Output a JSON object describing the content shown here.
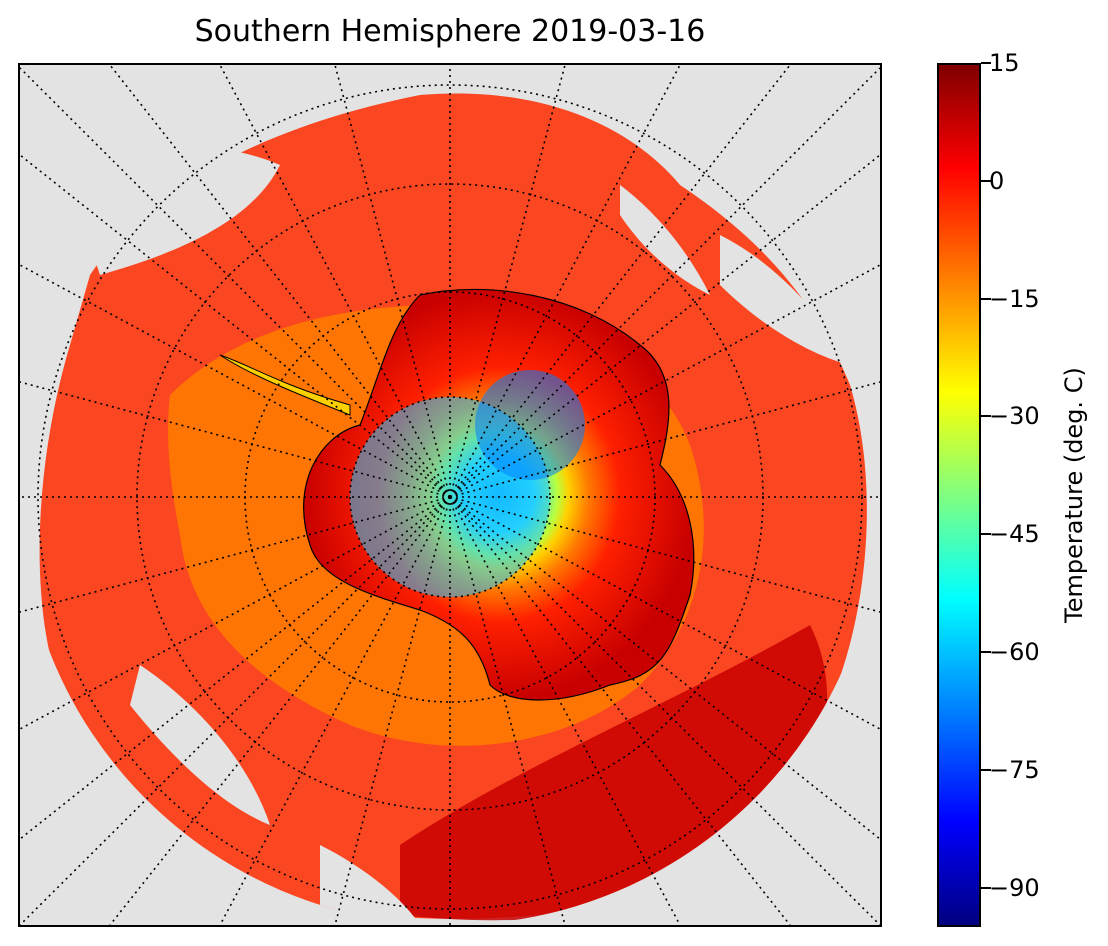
{
  "title": "Southern Hemisphere 2019-03-16",
  "colorbar": {
    "label": "Temperature (deg. C)",
    "ticks": [
      "15",
      "0",
      "−15",
      "−30",
      "−45",
      "−60",
      "−75",
      "−90"
    ],
    "min": -95,
    "max": 15,
    "colormap": "jet"
  },
  "map": {
    "projection": "south-polar-stereographic",
    "background_color": "#e3e3e3",
    "graticule": "dotted",
    "features": [
      "antarctica-coastline",
      "cloud-top-temperature-field"
    ]
  }
}
